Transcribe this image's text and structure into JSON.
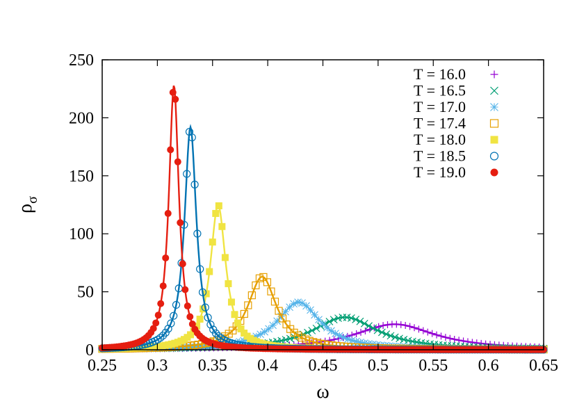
{
  "chart_data": {
    "type": "line",
    "title": "",
    "xlabel": "ω",
    "ylabel_main": "ρ",
    "ylabel_sub": "σ",
    "xlim": [
      0.25,
      0.65
    ],
    "ylim": [
      0,
      250
    ],
    "xticks": [
      0.25,
      0.3,
      0.35,
      0.4,
      0.45,
      0.5,
      0.55,
      0.6,
      0.65
    ],
    "xtick_labels": [
      "0.25",
      "0.3",
      "0.35",
      "0.4",
      "0.45",
      "0.5",
      "0.55",
      "0.6",
      "0.65"
    ],
    "yticks": [
      0,
      50,
      100,
      150,
      200,
      250
    ],
    "ytick_labels": [
      "0",
      "50",
      "100",
      "150",
      "200",
      "250"
    ],
    "grid": false,
    "legend_position": "top-right",
    "series": [
      {
        "name": "T = 16.0",
        "marker": "plus",
        "color": "#9400d3",
        "peak_x": 0.515,
        "peak_y": 22,
        "width": 0.045
      },
      {
        "name": "T = 16.5",
        "marker": "cross",
        "color": "#009e73",
        "peak_x": 0.47,
        "peak_y": 28,
        "width": 0.036
      },
      {
        "name": "T = 17.0",
        "marker": "asterisk",
        "color": "#56b4e9",
        "peak_x": 0.428,
        "peak_y": 41,
        "width": 0.024
      },
      {
        "name": "T = 17.4",
        "marker": "open-square",
        "color": "#e69f00",
        "peak_x": 0.395,
        "peak_y": 63,
        "width": 0.016
      },
      {
        "name": "T = 18.0",
        "marker": "filled-square",
        "color": "#f0e442",
        "peak_x": 0.355,
        "peak_y": 125,
        "width": 0.0085
      },
      {
        "name": "T = 18.5",
        "marker": "open-circle",
        "color": "#0072b2",
        "peak_x": 0.33,
        "peak_y": 192,
        "width": 0.0065
      },
      {
        "name": "T = 19.0",
        "marker": "filled-circle",
        "color": "#e51e10",
        "peak_x": 0.315,
        "peak_y": 228,
        "width": 0.0055
      }
    ]
  }
}
